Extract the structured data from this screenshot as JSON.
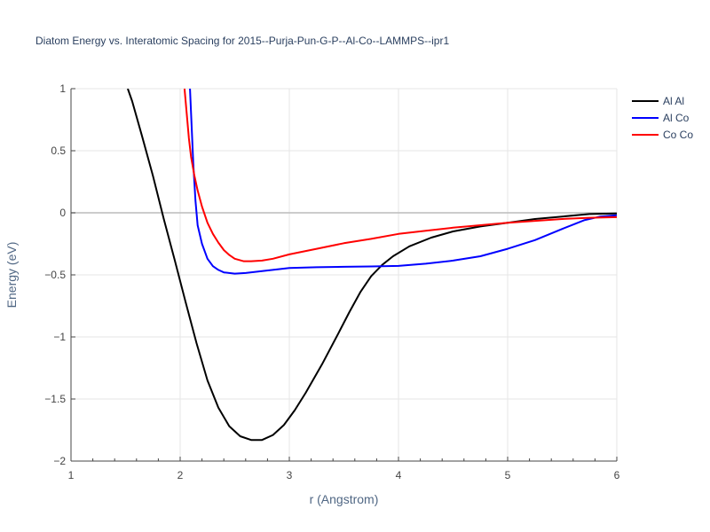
{
  "chart_data": {
    "type": "line",
    "title": "Diatom Energy vs. Interatomic Spacing for 2015--Purja-Pun-G-P--Al-Co--LAMMPS--ipr1",
    "xlabel": "r (Angstrom)",
    "ylabel": "Energy (eV)",
    "xlim": [
      1,
      6
    ],
    "ylim": [
      -2,
      1
    ],
    "x_ticks": [
      1,
      2,
      3,
      4,
      5,
      6
    ],
    "x_tick_labels": [
      "1",
      "2",
      "3",
      "4",
      "5",
      "6"
    ],
    "y_ticks": [
      1,
      0.5,
      0,
      -0.5,
      -1,
      -1.5,
      -2
    ],
    "y_tick_labels": [
      "1",
      "0.5",
      "0",
      "−0.5",
      "−1",
      "−1.5",
      "−2"
    ],
    "grid": true,
    "legend_position": "top-right",
    "series": [
      {
        "name": "Al Al",
        "color": "#000000",
        "points": [
          [
            1.52,
            1.0
          ],
          [
            1.56,
            0.9
          ],
          [
            1.65,
            0.62
          ],
          [
            1.75,
            0.3
          ],
          [
            1.85,
            -0.05
          ],
          [
            1.95,
            -0.38
          ],
          [
            2.05,
            -0.72
          ],
          [
            2.15,
            -1.05
          ],
          [
            2.25,
            -1.35
          ],
          [
            2.35,
            -1.57
          ],
          [
            2.45,
            -1.72
          ],
          [
            2.55,
            -1.8
          ],
          [
            2.65,
            -1.83
          ],
          [
            2.75,
            -1.83
          ],
          [
            2.85,
            -1.79
          ],
          [
            2.95,
            -1.71
          ],
          [
            3.05,
            -1.59
          ],
          [
            3.15,
            -1.45
          ],
          [
            3.3,
            -1.22
          ],
          [
            3.45,
            -0.97
          ],
          [
            3.55,
            -0.8
          ],
          [
            3.65,
            -0.64
          ],
          [
            3.75,
            -0.51
          ],
          [
            3.85,
            -0.42
          ],
          [
            3.95,
            -0.35
          ],
          [
            4.1,
            -0.27
          ],
          [
            4.3,
            -0.2
          ],
          [
            4.5,
            -0.15
          ],
          [
            4.75,
            -0.11
          ],
          [
            5.0,
            -0.08
          ],
          [
            5.25,
            -0.05
          ],
          [
            5.5,
            -0.03
          ],
          [
            5.75,
            -0.01
          ],
          [
            6.0,
            -0.005
          ]
        ]
      },
      {
        "name": "Al Co",
        "color": "#0000ff",
        "points": [
          [
            2.09,
            1.0
          ],
          [
            2.1,
            0.8
          ],
          [
            2.12,
            0.4
          ],
          [
            2.14,
            0.1
          ],
          [
            2.16,
            -0.1
          ],
          [
            2.2,
            -0.25
          ],
          [
            2.25,
            -0.37
          ],
          [
            2.3,
            -0.43
          ],
          [
            2.35,
            -0.46
          ],
          [
            2.4,
            -0.48
          ],
          [
            2.5,
            -0.49
          ],
          [
            2.6,
            -0.485
          ],
          [
            2.75,
            -0.47
          ],
          [
            3.0,
            -0.445
          ],
          [
            3.25,
            -0.438
          ],
          [
            3.5,
            -0.435
          ],
          [
            3.75,
            -0.432
          ],
          [
            4.0,
            -0.428
          ],
          [
            4.25,
            -0.41
          ],
          [
            4.5,
            -0.385
          ],
          [
            4.75,
            -0.35
          ],
          [
            5.0,
            -0.29
          ],
          [
            5.25,
            -0.22
          ],
          [
            5.5,
            -0.13
          ],
          [
            5.7,
            -0.06
          ],
          [
            5.85,
            -0.03
          ],
          [
            6.0,
            -0.02
          ]
        ]
      },
      {
        "name": "Co Co",
        "color": "#ff0000",
        "points": [
          [
            2.04,
            1.0
          ],
          [
            2.06,
            0.8
          ],
          [
            2.08,
            0.6
          ],
          [
            2.1,
            0.45
          ],
          [
            2.13,
            0.3
          ],
          [
            2.16,
            0.18
          ],
          [
            2.2,
            0.05
          ],
          [
            2.25,
            -0.08
          ],
          [
            2.3,
            -0.17
          ],
          [
            2.35,
            -0.24
          ],
          [
            2.4,
            -0.3
          ],
          [
            2.45,
            -0.34
          ],
          [
            2.5,
            -0.37
          ],
          [
            2.58,
            -0.39
          ],
          [
            2.65,
            -0.39
          ],
          [
            2.75,
            -0.385
          ],
          [
            2.85,
            -0.37
          ],
          [
            3.0,
            -0.335
          ],
          [
            3.25,
            -0.29
          ],
          [
            3.5,
            -0.245
          ],
          [
            3.75,
            -0.21
          ],
          [
            4.0,
            -0.17
          ],
          [
            4.25,
            -0.145
          ],
          [
            4.5,
            -0.12
          ],
          [
            4.75,
            -0.1
          ],
          [
            5.0,
            -0.08
          ],
          [
            5.25,
            -0.065
          ],
          [
            5.5,
            -0.05
          ],
          [
            5.75,
            -0.04
          ],
          [
            6.0,
            -0.035
          ]
        ]
      }
    ]
  }
}
